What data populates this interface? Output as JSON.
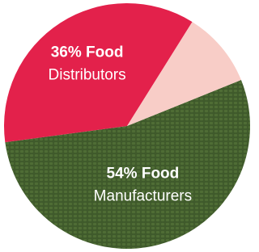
{
  "chart_data": {
    "type": "pie",
    "categories": [
      "Manufacturers",
      "Distributors",
      null
    ],
    "values": [
      54,
      36,
      10
    ],
    "value_labels": [
      "54% Food",
      "36% Food",
      null
    ],
    "colors": [
      "#3f5a2b",
      "#e3214b",
      "#f8cdc7"
    ]
  }
}
